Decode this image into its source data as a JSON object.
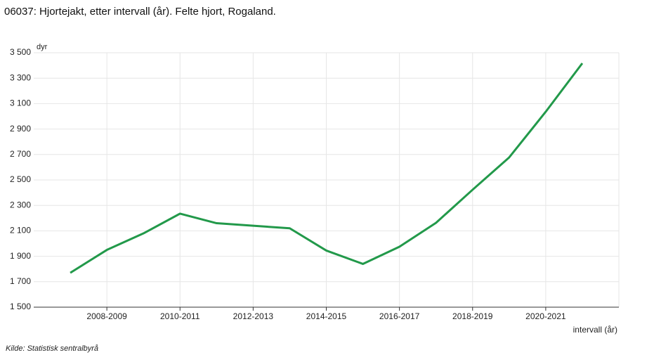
{
  "chart_data": {
    "type": "line",
    "title": "06037: Hjortejakt, etter intervall (år). Felte hjort, Rogaland.",
    "y_label": "dyr",
    "x_label": "intervall (år)",
    "source": "Kilde:  Statistisk sentralbyrå",
    "categories": [
      null,
      "2008-2009",
      null,
      "2010-2011",
      null,
      "2012-2013",
      null,
      "2014-2015",
      null,
      "2016-2017",
      null,
      "2018-2019",
      null,
      "2020-2021",
      null
    ],
    "series": [
      {
        "name": "Felte hjort",
        "color": "#22994a",
        "values": [
          1770,
          1950,
          2080,
          2235,
          2160,
          2140,
          2120,
          1945,
          1840,
          1975,
          2163,
          2423,
          2677,
          3036,
          3417
        ]
      }
    ],
    "ylim": [
      1500,
      3500
    ],
    "yticks": [
      {
        "value": 1500,
        "label": "1 500"
      },
      {
        "value": 1700,
        "label": "1 700"
      },
      {
        "value": 1900,
        "label": "1 900"
      },
      {
        "value": 2100,
        "label": "2 100"
      },
      {
        "value": 2300,
        "label": "2 300"
      },
      {
        "value": 2500,
        "label": "2 500"
      },
      {
        "value": 2700,
        "label": "2 700"
      },
      {
        "value": 2900,
        "label": "2 900"
      },
      {
        "value": 3100,
        "label": "3 100"
      },
      {
        "value": 3300,
        "label": "3 300"
      },
      {
        "value": 3500,
        "label": "3 500"
      }
    ],
    "grid": true
  }
}
